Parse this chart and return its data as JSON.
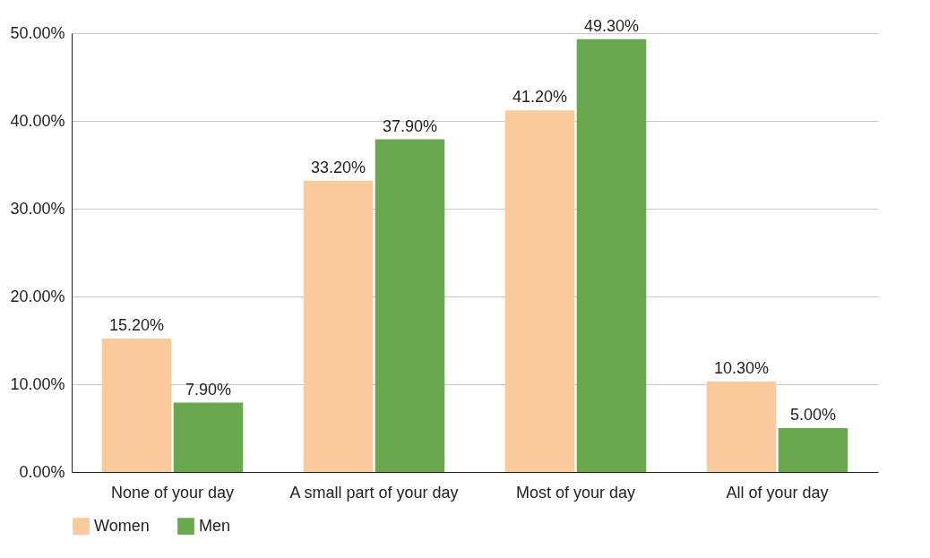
{
  "chart_data": {
    "type": "bar",
    "categories": [
      "None of your day",
      "A small part of your day",
      "Most of your day",
      "All of your day"
    ],
    "series": [
      {
        "name": "Women",
        "color": "#f8ca9c",
        "values": [
          15.2,
          33.2,
          41.2,
          10.3
        ],
        "value_labels": [
          "15.20%",
          "33.20%",
          "41.20%",
          "10.30%"
        ]
      },
      {
        "name": "Men",
        "color": "#6aa84f",
        "values": [
          7.9,
          37.9,
          49.3,
          5.0
        ],
        "value_labels": [
          "7.90%",
          "37.90%",
          "49.30%",
          "5.00%"
        ]
      }
    ],
    "ylim": [
      0,
      50
    ],
    "yticks": [
      {
        "value": 0,
        "label": "0.00%"
      },
      {
        "value": 10,
        "label": "10.00%"
      },
      {
        "value": 20,
        "label": "20.00%"
      },
      {
        "value": 30,
        "label": "30.00%"
      },
      {
        "value": 40,
        "label": "40.00%"
      },
      {
        "value": 50,
        "label": "50.00%"
      }
    ],
    "grid": "y",
    "legend": "bottom"
  }
}
